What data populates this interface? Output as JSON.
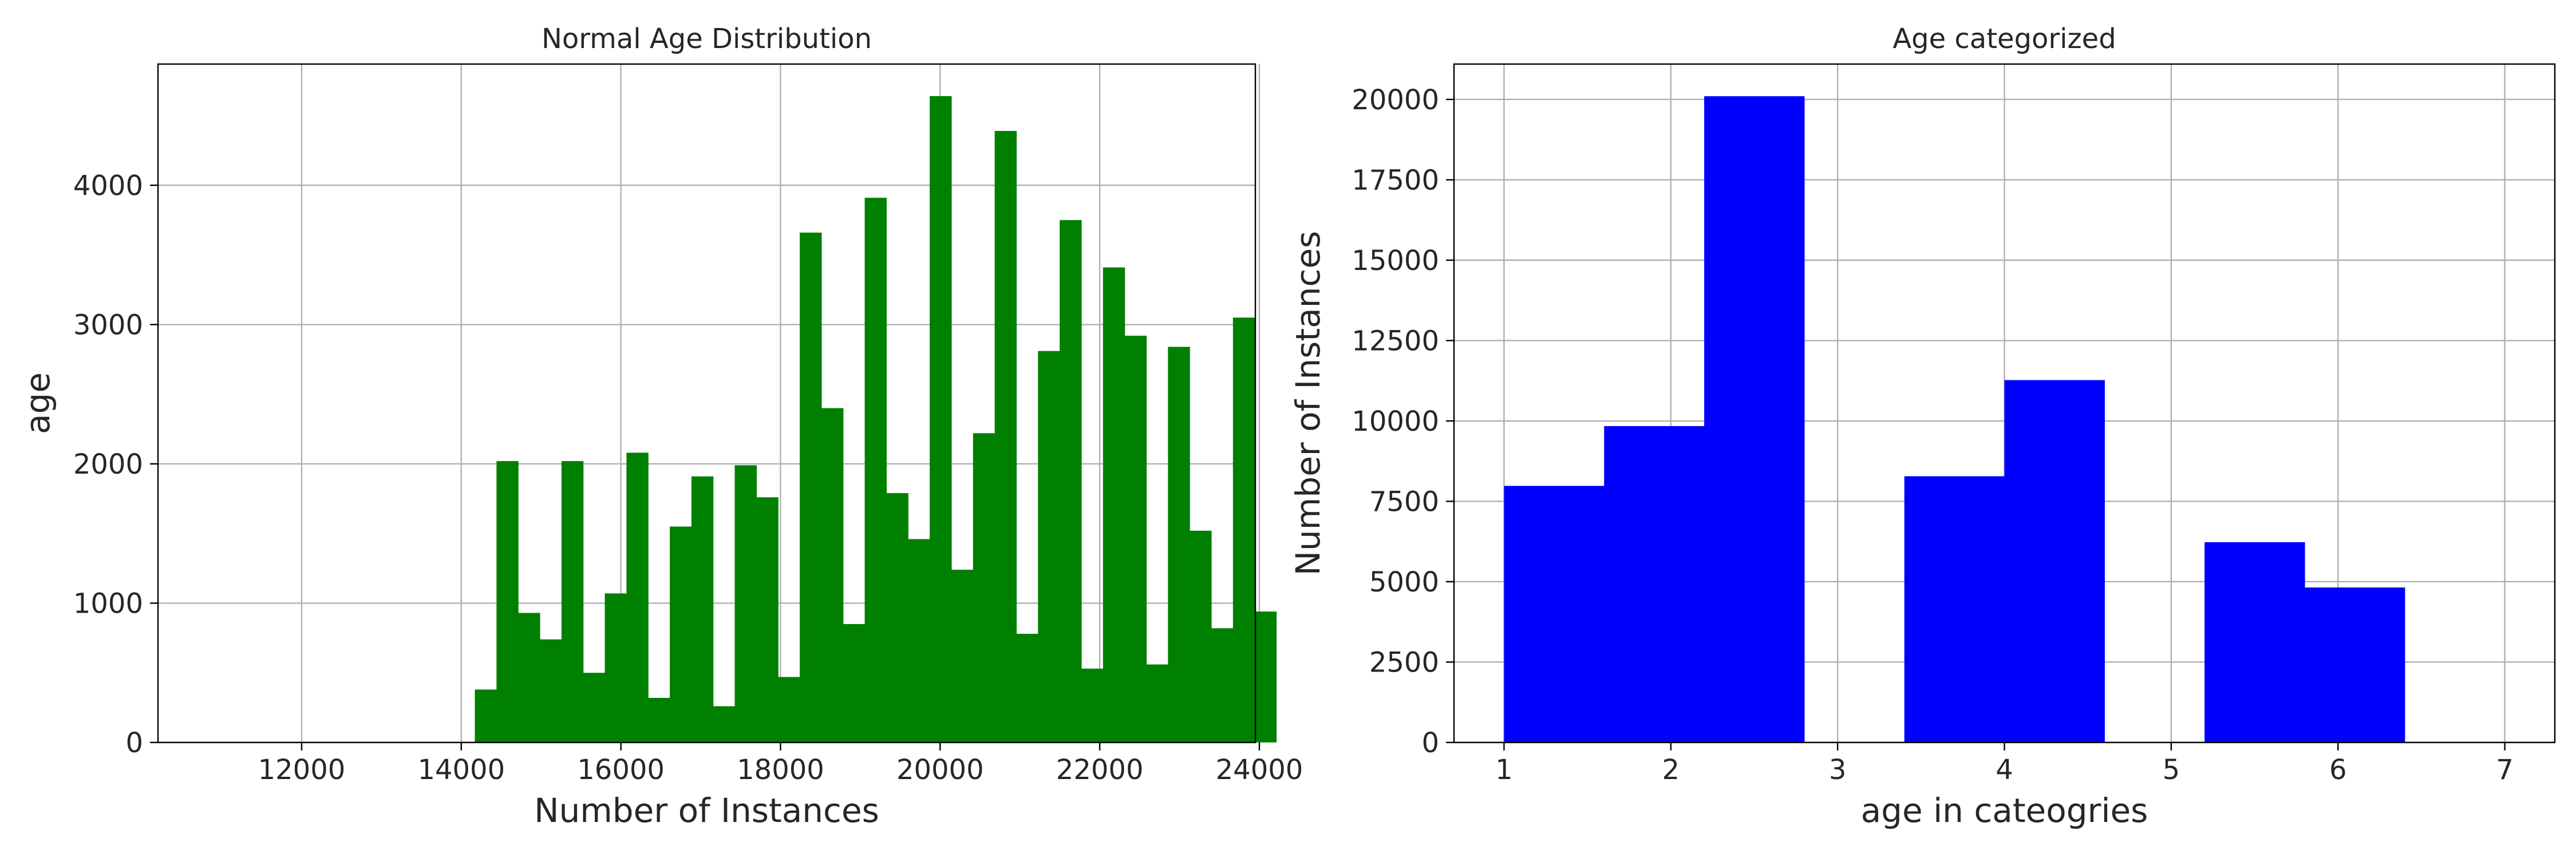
{
  "chart_data": [
    {
      "type": "bar",
      "title": "Normal Age Distribution",
      "xlabel": "Number of Instances",
      "ylabel": "age",
      "xlim": [
        10200,
        23950
      ],
      "ylim": [
        0,
        4870
      ],
      "xticks": [
        12000,
        14000,
        16000,
        18000,
        20000,
        22000,
        24000
      ],
      "yticks": [
        0,
        1000,
        2000,
        3000,
        4000
      ],
      "grid": true,
      "color": "#008000",
      "bin_start": 14170,
      "bin_width": 271.4,
      "values": [
        380,
        2020,
        930,
        740,
        2020,
        500,
        1070,
        2080,
        320,
        1550,
        1910,
        260,
        1990,
        1760,
        470,
        3660,
        2400,
        850,
        3910,
        1790,
        1460,
        4640,
        1240,
        2220,
        4390,
        780,
        2810,
        3750,
        530,
        3410,
        2920,
        560,
        2840,
        1520,
        820,
        3050,
        940
      ]
    },
    {
      "type": "bar",
      "title": "Age categorized",
      "xlabel": "age in cateogries",
      "ylabel": "Number of Instances",
      "xlim": [
        0.7,
        7.3
      ],
      "ylim": [
        0,
        21100
      ],
      "xticks": [
        1,
        2,
        3,
        4,
        5,
        6,
        7
      ],
      "yticks": [
        0,
        2500,
        5000,
        7500,
        10000,
        12500,
        15000,
        17500,
        20000
      ],
      "grid": true,
      "color": "#0000ff",
      "bin_start": 1,
      "bin_width": 0.6,
      "values": [
        7980,
        9840,
        20100,
        0,
        8280,
        11270,
        0,
        6230,
        4820,
        0
      ]
    }
  ]
}
